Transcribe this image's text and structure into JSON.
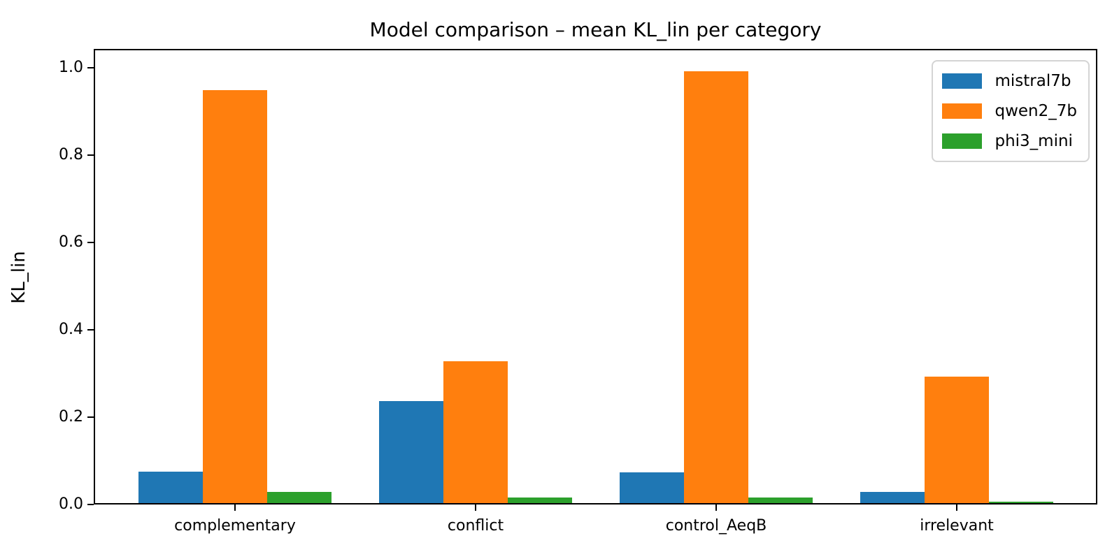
{
  "chart_data": {
    "type": "bar",
    "title": "Model comparison – mean KL_lin per category",
    "xlabel": "",
    "ylabel": "KL_lin",
    "categories": [
      "complementary",
      "conflict",
      "control_AeqB",
      "irrelevant"
    ],
    "series": [
      {
        "name": "mistral7b",
        "color": "#1f77b4",
        "values": [
          0.072,
          0.233,
          0.07,
          0.025
        ]
      },
      {
        "name": "qwen2_7b",
        "color": "#ff7f0e",
        "values": [
          0.945,
          0.325,
          0.988,
          0.29
        ]
      },
      {
        "name": "phi3_mini",
        "color": "#2ca02c",
        "values": [
          0.026,
          0.013,
          0.013,
          0.003
        ]
      }
    ],
    "ylim": [
      0,
      1.043
    ],
    "yticks": [
      "0.0",
      "0.2",
      "0.4",
      "0.6",
      "0.8",
      "1.0"
    ],
    "grid": false,
    "legend_position": "upper right",
    "bar_group_width": 0.8
  }
}
